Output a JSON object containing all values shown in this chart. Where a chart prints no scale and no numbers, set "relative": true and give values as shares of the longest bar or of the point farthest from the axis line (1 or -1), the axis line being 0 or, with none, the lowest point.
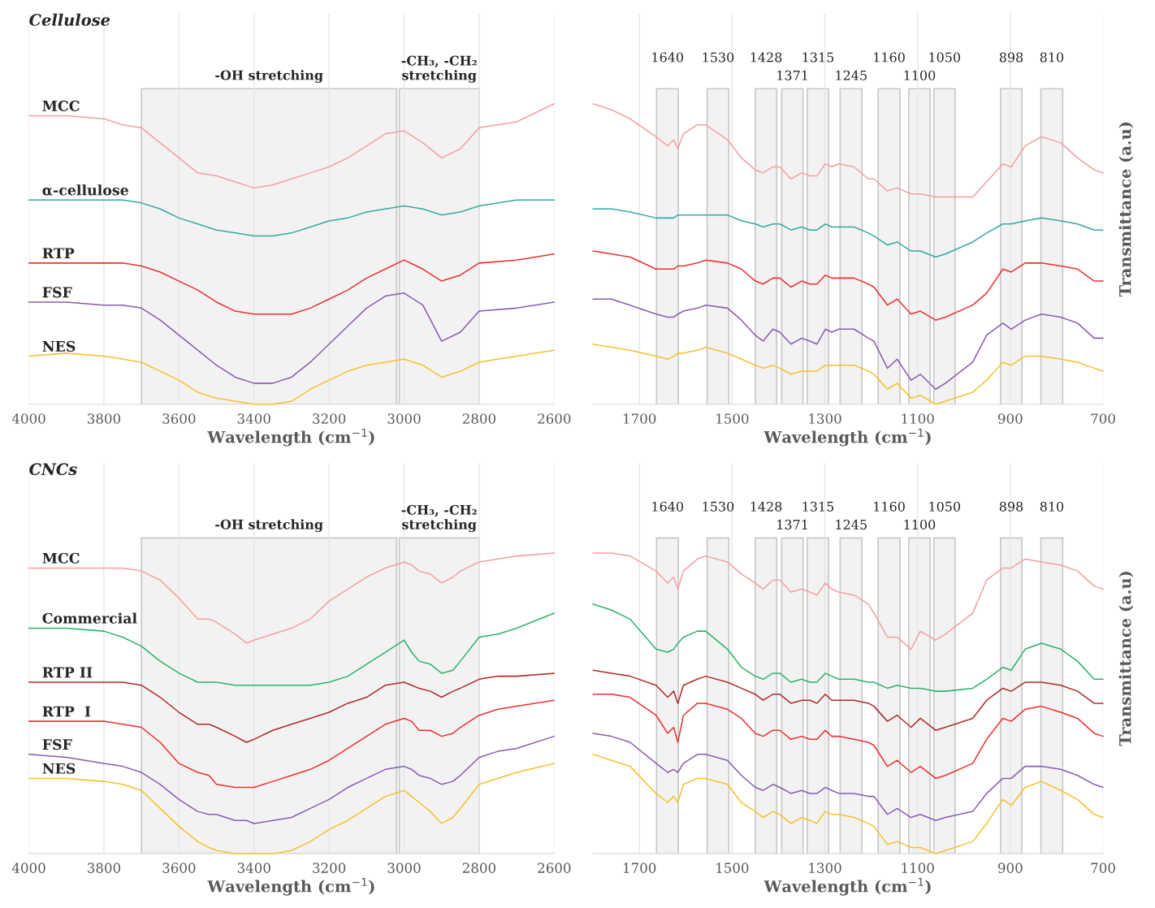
{
  "chart_data": [
    {
      "type": "line",
      "title": "Cellulose",
      "xlabel": "Wavelength (cm$^{−1}$)",
      "relative": true,
      "grid": "x",
      "xlim": [
        4000,
        2600
      ],
      "xticks": [
        4000,
        3800,
        3600,
        3400,
        3200,
        3000,
        2800,
        2600
      ],
      "bands": [
        {
          "axis": "x",
          "from": 3700,
          "to": 3020,
          "label": "-OH stretching"
        },
        {
          "axis": "x",
          "from": 3013,
          "to": 2800,
          "label": "-CH₃, -CH₂\nstretching"
        }
      ],
      "series": [
        {
          "name": "MCC",
          "color": "#f4a0a0",
          "x": [
            4000,
            3900,
            3800,
            3750,
            3700,
            3650,
            3600,
            3550,
            3500,
            3450,
            3400,
            3350,
            3300,
            3250,
            3200,
            3150,
            3100,
            3050,
            3000,
            2950,
            2900,
            2850,
            2800,
            2700,
            2600
          ],
          "values": [
            0.96,
            0.96,
            0.95,
            0.93,
            0.92,
            0.87,
            0.82,
            0.77,
            0.76,
            0.74,
            0.72,
            0.73,
            0.75,
            0.77,
            0.79,
            0.82,
            0.86,
            0.9,
            0.91,
            0.87,
            0.82,
            0.85,
            0.92,
            0.94,
            1.0
          ]
        },
        {
          "name": "α-cellulose",
          "color": "#35a8a5",
          "x": [
            4000,
            3900,
            3800,
            3750,
            3700,
            3650,
            3600,
            3550,
            3500,
            3450,
            3400,
            3350,
            3300,
            3250,
            3200,
            3150,
            3100,
            3050,
            3000,
            2950,
            2900,
            2850,
            2800,
            2700,
            2600
          ],
          "values": [
            0.68,
            0.68,
            0.68,
            0.68,
            0.67,
            0.65,
            0.62,
            0.6,
            0.58,
            0.57,
            0.56,
            0.56,
            0.57,
            0.59,
            0.61,
            0.62,
            0.64,
            0.65,
            0.66,
            0.65,
            0.63,
            0.64,
            0.66,
            0.68,
            0.68
          ]
        },
        {
          "name": "RTP",
          "color": "#ee3030",
          "x": [
            4000,
            3900,
            3800,
            3750,
            3700,
            3650,
            3600,
            3550,
            3500,
            3450,
            3400,
            3350,
            3300,
            3250,
            3200,
            3150,
            3100,
            3050,
            3000,
            2950,
            2900,
            2850,
            2800,
            2700,
            2600
          ],
          "values": [
            0.47,
            0.47,
            0.47,
            0.47,
            0.46,
            0.44,
            0.41,
            0.38,
            0.34,
            0.31,
            0.3,
            0.3,
            0.3,
            0.32,
            0.35,
            0.38,
            0.42,
            0.45,
            0.48,
            0.45,
            0.41,
            0.43,
            0.47,
            0.48,
            0.5
          ]
        },
        {
          "name": "FSF",
          "color": "#8a5cb0",
          "x": [
            4000,
            3900,
            3800,
            3750,
            3700,
            3650,
            3600,
            3550,
            3500,
            3450,
            3400,
            3350,
            3300,
            3250,
            3200,
            3150,
            3100,
            3050,
            3000,
            2950,
            2900,
            2850,
            2800,
            2700,
            2600
          ],
          "values": [
            0.34,
            0.34,
            0.33,
            0.33,
            0.32,
            0.28,
            0.23,
            0.18,
            0.13,
            0.09,
            0.07,
            0.07,
            0.09,
            0.14,
            0.2,
            0.26,
            0.32,
            0.36,
            0.37,
            0.33,
            0.21,
            0.24,
            0.31,
            0.32,
            0.34
          ]
        },
        {
          "name": "NES",
          "color": "#f5c030",
          "x": [
            4000,
            3900,
            3800,
            3750,
            3700,
            3650,
            3600,
            3550,
            3500,
            3450,
            3400,
            3350,
            3300,
            3250,
            3200,
            3150,
            3100,
            3050,
            3000,
            2950,
            2900,
            2850,
            2800,
            2700,
            2600
          ],
          "values": [
            0.16,
            0.17,
            0.16,
            0.15,
            0.14,
            0.11,
            0.08,
            0.04,
            0.02,
            0.01,
            0,
            0,
            0.01,
            0.05,
            0.08,
            0.11,
            0.13,
            0.14,
            0.15,
            0.13,
            0.09,
            0.11,
            0.14,
            0.16,
            0.18
          ]
        }
      ]
    },
    {
      "type": "line",
      "xlabel": "Wavelength (cm$^{−1}$)",
      "ylabel": "Transmittance (a.u)",
      "relative": true,
      "grid": "x",
      "xlim": [
        1800,
        700
      ],
      "xticks": [
        1700,
        1500,
        1300,
        1100,
        900,
        700
      ],
      "bands": [
        {
          "axis": "x",
          "from": 1663,
          "to": 1616,
          "label": "1640"
        },
        {
          "axis": "x",
          "from": 1554,
          "to": 1507,
          "label": "1530"
        },
        {
          "axis": "x",
          "from": 1450,
          "to": 1404,
          "label": "1428"
        },
        {
          "axis": "x",
          "from": 1393,
          "to": 1347,
          "label": "1371"
        },
        {
          "axis": "x",
          "from": 1338,
          "to": 1292,
          "label": "1315"
        },
        {
          "axis": "x",
          "from": 1267,
          "to": 1220,
          "label": "1245"
        },
        {
          "axis": "x",
          "from": 1185,
          "to": 1138,
          "label": "1160"
        },
        {
          "axis": "x",
          "from": 1119,
          "to": 1073,
          "label": "1100"
        },
        {
          "axis": "x",
          "from": 1065,
          "to": 1019,
          "label": "1050"
        },
        {
          "axis": "x",
          "from": 921,
          "to": 875,
          "label": "898"
        },
        {
          "axis": "x",
          "from": 834,
          "to": 787,
          "label": "810"
        }
      ],
      "series": [
        {
          "color": "#f4a0a0",
          "x": [
            1800,
            1760,
            1720,
            1664,
            1639,
            1626,
            1617,
            1605,
            1575,
            1557,
            1510,
            1480,
            1450,
            1433,
            1412,
            1397,
            1373,
            1350,
            1332,
            1317,
            1299,
            1285,
            1270,
            1237,
            1206,
            1194,
            1165,
            1144,
            1114,
            1094,
            1061,
            1040,
            981,
            951,
            916,
            898,
            868,
            833,
            791,
            755,
            719,
            700
          ],
          "values": [
            1.0,
            0.98,
            0.95,
            0.89,
            0.86,
            0.88,
            0.85,
            0.9,
            0.93,
            0.93,
            0.88,
            0.82,
            0.78,
            0.77,
            0.79,
            0.79,
            0.75,
            0.77,
            0.76,
            0.76,
            0.8,
            0.79,
            0.8,
            0.79,
            0.75,
            0.75,
            0.71,
            0.72,
            0.7,
            0.7,
            0.69,
            0.69,
            0.69,
            0.74,
            0.8,
            0.79,
            0.86,
            0.89,
            0.87,
            0.82,
            0.78,
            0.77
          ]
        },
        {
          "color": "#35a8a5",
          "x": [
            1800,
            1760,
            1720,
            1664,
            1639,
            1626,
            1617,
            1605,
            1575,
            1557,
            1510,
            1480,
            1450,
            1433,
            1412,
            1397,
            1373,
            1350,
            1332,
            1317,
            1299,
            1285,
            1270,
            1237,
            1206,
            1194,
            1165,
            1144,
            1114,
            1094,
            1061,
            1040,
            981,
            951,
            916,
            898,
            868,
            833,
            791,
            755,
            719,
            700
          ],
          "values": [
            0.65,
            0.65,
            0.64,
            0.62,
            0.62,
            0.62,
            0.63,
            0.63,
            0.63,
            0.63,
            0.63,
            0.61,
            0.6,
            0.59,
            0.6,
            0.6,
            0.58,
            0.59,
            0.58,
            0.58,
            0.6,
            0.59,
            0.59,
            0.59,
            0.57,
            0.56,
            0.53,
            0.54,
            0.51,
            0.51,
            0.49,
            0.5,
            0.54,
            0.57,
            0.6,
            0.6,
            0.61,
            0.62,
            0.61,
            0.6,
            0.58,
            0.58
          ]
        },
        {
          "color": "#ee3030",
          "x": [
            1800,
            1760,
            1720,
            1664,
            1639,
            1626,
            1617,
            1605,
            1575,
            1557,
            1510,
            1480,
            1450,
            1433,
            1412,
            1397,
            1373,
            1350,
            1332,
            1317,
            1299,
            1285,
            1270,
            1237,
            1206,
            1194,
            1165,
            1144,
            1114,
            1094,
            1061,
            1040,
            981,
            951,
            916,
            898,
            868,
            833,
            791,
            755,
            719,
            700
          ],
          "values": [
            0.51,
            0.5,
            0.49,
            0.45,
            0.45,
            0.45,
            0.46,
            0.46,
            0.47,
            0.48,
            0.47,
            0.45,
            0.41,
            0.4,
            0.42,
            0.42,
            0.39,
            0.41,
            0.4,
            0.4,
            0.43,
            0.42,
            0.42,
            0.42,
            0.4,
            0.39,
            0.33,
            0.35,
            0.3,
            0.31,
            0.28,
            0.29,
            0.33,
            0.37,
            0.45,
            0.44,
            0.47,
            0.47,
            0.46,
            0.45,
            0.41,
            0.41
          ]
        },
        {
          "color": "#8a5cb0",
          "x": [
            1800,
            1760,
            1720,
            1664,
            1639,
            1626,
            1617,
            1605,
            1575,
            1557,
            1510,
            1480,
            1450,
            1433,
            1412,
            1397,
            1373,
            1350,
            1332,
            1317,
            1299,
            1285,
            1270,
            1237,
            1206,
            1194,
            1165,
            1144,
            1114,
            1094,
            1061,
            1040,
            981,
            951,
            916,
            898,
            868,
            833,
            791,
            755,
            719,
            700
          ],
          "values": [
            0.35,
            0.35,
            0.33,
            0.3,
            0.29,
            0.29,
            0.3,
            0.31,
            0.32,
            0.33,
            0.32,
            0.28,
            0.23,
            0.21,
            0.25,
            0.24,
            0.2,
            0.22,
            0.21,
            0.2,
            0.25,
            0.24,
            0.25,
            0.25,
            0.22,
            0.21,
            0.12,
            0.15,
            0.08,
            0.1,
            0.05,
            0.07,
            0.14,
            0.23,
            0.27,
            0.25,
            0.28,
            0.3,
            0.29,
            0.27,
            0.22,
            0.22
          ]
        },
        {
          "color": "#f5c030",
          "x": [
            1800,
            1760,
            1720,
            1664,
            1639,
            1626,
            1617,
            1605,
            1575,
            1557,
            1510,
            1480,
            1450,
            1433,
            1412,
            1397,
            1373,
            1350,
            1332,
            1317,
            1299,
            1285,
            1270,
            1237,
            1206,
            1194,
            1165,
            1144,
            1114,
            1094,
            1061,
            1040,
            981,
            951,
            916,
            898,
            868,
            833,
            791,
            755,
            719,
            700
          ],
          "values": [
            0.2,
            0.19,
            0.18,
            0.16,
            0.15,
            0.16,
            0.17,
            0.17,
            0.18,
            0.19,
            0.17,
            0.15,
            0.13,
            0.12,
            0.13,
            0.12,
            0.1,
            0.11,
            0.11,
            0.11,
            0.13,
            0.13,
            0.13,
            0.13,
            0.11,
            0.1,
            0.05,
            0.07,
            0.02,
            0.03,
            0,
            0.01,
            0.04,
            0.08,
            0.14,
            0.13,
            0.16,
            0.16,
            0.15,
            0.14,
            0.12,
            0.11
          ]
        }
      ]
    },
    {
      "type": "line",
      "title": "CNCs",
      "xlabel": "Wavelength (cm$^{−1}$)",
      "relative": true,
      "grid": "x",
      "xlim": [
        4000,
        2600
      ],
      "xticks": [
        4000,
        3800,
        3600,
        3400,
        3200,
        3000,
        2800,
        2600
      ],
      "bands": [
        {
          "axis": "x",
          "from": 3700,
          "to": 3020,
          "label": "-OH stretching"
        },
        {
          "axis": "x",
          "from": 3013,
          "to": 2800,
          "label": "-CH₃, -CH₂\nstretching"
        }
      ],
      "series": [
        {
          "name": "MCC",
          "color": "#f4a0a0",
          "x": [
            4000,
            3900,
            3800,
            3750,
            3700,
            3650,
            3600,
            3550,
            3520,
            3500,
            3450,
            3420,
            3400,
            3350,
            3300,
            3250,
            3200,
            3150,
            3100,
            3050,
            3000,
            2980,
            2960,
            2930,
            2900,
            2870,
            2850,
            2800,
            2750,
            2700,
            2600
          ],
          "values": [
            0.95,
            0.95,
            0.95,
            0.95,
            0.94,
            0.91,
            0.85,
            0.78,
            0.78,
            0.77,
            0.73,
            0.7,
            0.71,
            0.73,
            0.75,
            0.78,
            0.84,
            0.88,
            0.92,
            0.95,
            0.97,
            0.96,
            0.94,
            0.93,
            0.9,
            0.92,
            0.94,
            0.97,
            0.98,
            0.99,
            1.0
          ]
        },
        {
          "name": "Commercial",
          "color": "#2eb36a",
          "x": [
            4000,
            3900,
            3800,
            3750,
            3700,
            3650,
            3600,
            3550,
            3520,
            3500,
            3450,
            3420,
            3400,
            3350,
            3300,
            3250,
            3200,
            3150,
            3100,
            3050,
            3000,
            2980,
            2960,
            2930,
            2900,
            2870,
            2850,
            2800,
            2750,
            2700,
            2600
          ],
          "values": [
            0.75,
            0.75,
            0.74,
            0.72,
            0.69,
            0.64,
            0.6,
            0.57,
            0.57,
            0.57,
            0.56,
            0.56,
            0.56,
            0.56,
            0.56,
            0.56,
            0.57,
            0.59,
            0.63,
            0.67,
            0.71,
            0.67,
            0.64,
            0.63,
            0.6,
            0.61,
            0.64,
            0.72,
            0.73,
            0.75,
            0.8
          ]
        },
        {
          "name": "RTP II",
          "color": "#b22a2a",
          "x": [
            4000,
            3900,
            3800,
            3750,
            3700,
            3650,
            3600,
            3550,
            3520,
            3500,
            3450,
            3420,
            3400,
            3350,
            3300,
            3250,
            3200,
            3150,
            3100,
            3050,
            3000,
            2980,
            2960,
            2930,
            2900,
            2870,
            2850,
            2800,
            2750,
            2700,
            2600
          ],
          "values": [
            0.57,
            0.57,
            0.57,
            0.57,
            0.56,
            0.52,
            0.47,
            0.43,
            0.43,
            0.42,
            0.39,
            0.37,
            0.38,
            0.41,
            0.43,
            0.45,
            0.47,
            0.5,
            0.52,
            0.56,
            0.57,
            0.56,
            0.55,
            0.54,
            0.52,
            0.54,
            0.55,
            0.58,
            0.59,
            0.59,
            0.6
          ]
        },
        {
          "name": "RTP  I",
          "color": "#ee3030",
          "x": [
            4000,
            3900,
            3800,
            3750,
            3700,
            3650,
            3600,
            3550,
            3520,
            3500,
            3450,
            3420,
            3400,
            3350,
            3300,
            3250,
            3200,
            3150,
            3100,
            3050,
            3000,
            2980,
            2960,
            2930,
            2900,
            2870,
            2850,
            2800,
            2750,
            2700,
            2600
          ],
          "values": [
            0.44,
            0.44,
            0.44,
            0.43,
            0.42,
            0.37,
            0.3,
            0.27,
            0.26,
            0.23,
            0.22,
            0.22,
            0.22,
            0.24,
            0.26,
            0.28,
            0.31,
            0.35,
            0.39,
            0.43,
            0.45,
            0.44,
            0.41,
            0.41,
            0.39,
            0.4,
            0.42,
            0.46,
            0.48,
            0.49,
            0.51
          ]
        },
        {
          "name": "FSF",
          "color": "#8a5cb0",
          "x": [
            4000,
            3900,
            3800,
            3750,
            3700,
            3650,
            3600,
            3550,
            3520,
            3500,
            3450,
            3420,
            3400,
            3350,
            3300,
            3250,
            3200,
            3150,
            3100,
            3050,
            3000,
            2980,
            2960,
            2930,
            2900,
            2870,
            2850,
            2800,
            2750,
            2700,
            2600
          ],
          "values": [
            0.33,
            0.32,
            0.3,
            0.29,
            0.27,
            0.23,
            0.18,
            0.14,
            0.13,
            0.13,
            0.11,
            0.11,
            0.1,
            0.11,
            0.12,
            0.15,
            0.18,
            0.22,
            0.25,
            0.28,
            0.29,
            0.28,
            0.26,
            0.25,
            0.23,
            0.24,
            0.26,
            0.32,
            0.34,
            0.35,
            0.39
          ]
        },
        {
          "name": "NES",
          "color": "#f5c030",
          "x": [
            4000,
            3900,
            3800,
            3750,
            3700,
            3650,
            3600,
            3550,
            3520,
            3500,
            3450,
            3420,
            3400,
            3350,
            3300,
            3250,
            3200,
            3150,
            3100,
            3050,
            3000,
            2980,
            2960,
            2930,
            2900,
            2870,
            2850,
            2800,
            2750,
            2700,
            2600
          ],
          "values": [
            0.25,
            0.25,
            0.24,
            0.23,
            0.21,
            0.15,
            0.09,
            0.04,
            0.02,
            0.01,
            0,
            0,
            0,
            0,
            0.01,
            0.04,
            0.08,
            0.11,
            0.15,
            0.19,
            0.21,
            0.19,
            0.17,
            0.14,
            0.1,
            0.12,
            0.15,
            0.23,
            0.25,
            0.27,
            0.3
          ]
        }
      ]
    },
    {
      "type": "line",
      "xlabel": "Wavelength (cm$^{−1}$)",
      "ylabel": "Transmittance (a.u)",
      "relative": true,
      "grid": "x",
      "xlim": [
        1800,
        700
      ],
      "xticks": [
        1700,
        1500,
        1300,
        1100,
        900,
        700
      ],
      "bands": [
        {
          "axis": "x",
          "from": 1663,
          "to": 1616,
          "label": "1640"
        },
        {
          "axis": "x",
          "from": 1554,
          "to": 1507,
          "label": "1530"
        },
        {
          "axis": "x",
          "from": 1450,
          "to": 1404,
          "label": "1428"
        },
        {
          "axis": "x",
          "from": 1393,
          "to": 1347,
          "label": "1371"
        },
        {
          "axis": "x",
          "from": 1338,
          "to": 1292,
          "label": "1315"
        },
        {
          "axis": "x",
          "from": 1267,
          "to": 1220,
          "label": "1245"
        },
        {
          "axis": "x",
          "from": 1185,
          "to": 1138,
          "label": "1160"
        },
        {
          "axis": "x",
          "from": 1119,
          "to": 1073,
          "label": "1100"
        },
        {
          "axis": "x",
          "from": 1065,
          "to": 1019,
          "label": "1050"
        },
        {
          "axis": "x",
          "from": 921,
          "to": 875,
          "label": "898"
        },
        {
          "axis": "x",
          "from": 834,
          "to": 787,
          "label": "810"
        }
      ],
      "series": [
        {
          "color": "#f4a0a0",
          "x": [
            1800,
            1760,
            1720,
            1664,
            1639,
            1626,
            1617,
            1605,
            1575,
            1557,
            1510,
            1480,
            1450,
            1433,
            1412,
            1397,
            1373,
            1350,
            1332,
            1317,
            1299,
            1285,
            1270,
            1237,
            1206,
            1194,
            1165,
            1144,
            1114,
            1094,
            1061,
            1040,
            981,
            951,
            916,
            898,
            868,
            833,
            791,
            755,
            719,
            700
          ],
          "values": [
            1.0,
            1.0,
            0.99,
            0.94,
            0.9,
            0.92,
            0.88,
            0.94,
            0.98,
            0.99,
            0.97,
            0.93,
            0.9,
            0.88,
            0.91,
            0.91,
            0.87,
            0.88,
            0.87,
            0.86,
            0.9,
            0.88,
            0.87,
            0.86,
            0.83,
            0.8,
            0.72,
            0.72,
            0.68,
            0.74,
            0.71,
            0.73,
            0.8,
            0.91,
            0.95,
            0.95,
            0.98,
            0.97,
            0.96,
            0.94,
            0.89,
            0.88
          ]
        },
        {
          "color": "#2eb36a",
          "x": [
            1800,
            1760,
            1720,
            1664,
            1639,
            1626,
            1617,
            1605,
            1575,
            1557,
            1510,
            1480,
            1450,
            1433,
            1412,
            1397,
            1373,
            1350,
            1332,
            1317,
            1299,
            1285,
            1270,
            1237,
            1206,
            1194,
            1165,
            1144,
            1114,
            1094,
            1061,
            1040,
            981,
            951,
            916,
            898,
            868,
            833,
            791,
            755,
            719,
            700
          ],
          "values": [
            0.83,
            0.81,
            0.78,
            0.68,
            0.67,
            0.68,
            0.7,
            0.72,
            0.74,
            0.74,
            0.68,
            0.62,
            0.59,
            0.58,
            0.6,
            0.6,
            0.57,
            0.58,
            0.57,
            0.57,
            0.6,
            0.59,
            0.58,
            0.58,
            0.57,
            0.57,
            0.55,
            0.56,
            0.55,
            0.55,
            0.54,
            0.54,
            0.55,
            0.58,
            0.62,
            0.61,
            0.68,
            0.7,
            0.68,
            0.64,
            0.58,
            0.58
          ]
        },
        {
          "color": "#b22a2a",
          "x": [
            1800,
            1760,
            1720,
            1664,
            1639,
            1626,
            1617,
            1605,
            1575,
            1557,
            1510,
            1480,
            1450,
            1433,
            1412,
            1397,
            1373,
            1350,
            1332,
            1317,
            1299,
            1285,
            1270,
            1237,
            1206,
            1194,
            1165,
            1144,
            1114,
            1094,
            1061,
            1040,
            981,
            951,
            916,
            898,
            868,
            833,
            791,
            755,
            719,
            700
          ],
          "values": [
            0.61,
            0.6,
            0.59,
            0.56,
            0.52,
            0.54,
            0.5,
            0.56,
            0.58,
            0.59,
            0.57,
            0.55,
            0.53,
            0.51,
            0.53,
            0.53,
            0.5,
            0.51,
            0.51,
            0.5,
            0.53,
            0.51,
            0.51,
            0.51,
            0.5,
            0.49,
            0.44,
            0.46,
            0.42,
            0.45,
            0.41,
            0.42,
            0.45,
            0.51,
            0.55,
            0.54,
            0.57,
            0.57,
            0.56,
            0.54,
            0.5,
            0.5
          ]
        },
        {
          "color": "#ee3030",
          "x": [
            1800,
            1760,
            1720,
            1664,
            1639,
            1626,
            1617,
            1605,
            1575,
            1557,
            1510,
            1480,
            1450,
            1433,
            1412,
            1397,
            1373,
            1350,
            1332,
            1317,
            1299,
            1285,
            1270,
            1237,
            1206,
            1194,
            1165,
            1144,
            1114,
            1094,
            1061,
            1040,
            981,
            951,
            916,
            898,
            868,
            833,
            791,
            755,
            719,
            700
          ],
          "values": [
            0.53,
            0.53,
            0.52,
            0.46,
            0.4,
            0.42,
            0.37,
            0.46,
            0.5,
            0.5,
            0.48,
            0.45,
            0.4,
            0.39,
            0.41,
            0.41,
            0.38,
            0.39,
            0.38,
            0.38,
            0.41,
            0.39,
            0.39,
            0.38,
            0.37,
            0.36,
            0.29,
            0.31,
            0.27,
            0.29,
            0.25,
            0.26,
            0.3,
            0.38,
            0.45,
            0.44,
            0.48,
            0.49,
            0.47,
            0.45,
            0.4,
            0.39
          ]
        },
        {
          "color": "#8a5cb0",
          "x": [
            1800,
            1760,
            1720,
            1664,
            1639,
            1626,
            1617,
            1605,
            1575,
            1557,
            1510,
            1480,
            1450,
            1433,
            1412,
            1397,
            1373,
            1350,
            1332,
            1317,
            1299,
            1285,
            1270,
            1237,
            1206,
            1194,
            1165,
            1144,
            1114,
            1094,
            1061,
            1040,
            981,
            951,
            916,
            898,
            868,
            833,
            791,
            755,
            719,
            700
          ],
          "values": [
            0.4,
            0.39,
            0.37,
            0.3,
            0.27,
            0.28,
            0.27,
            0.3,
            0.33,
            0.33,
            0.31,
            0.26,
            0.22,
            0.21,
            0.23,
            0.22,
            0.2,
            0.21,
            0.2,
            0.2,
            0.22,
            0.21,
            0.2,
            0.2,
            0.19,
            0.19,
            0.13,
            0.15,
            0.12,
            0.13,
            0.11,
            0.12,
            0.14,
            0.2,
            0.25,
            0.25,
            0.29,
            0.29,
            0.28,
            0.26,
            0.23,
            0.22
          ]
        },
        {
          "color": "#f5c030",
          "x": [
            1800,
            1760,
            1720,
            1664,
            1639,
            1626,
            1617,
            1605,
            1575,
            1557,
            1510,
            1480,
            1450,
            1433,
            1412,
            1397,
            1373,
            1350,
            1332,
            1317,
            1299,
            1285,
            1270,
            1237,
            1206,
            1194,
            1165,
            1144,
            1114,
            1094,
            1061,
            1040,
            981,
            951,
            916,
            898,
            868,
            833,
            791,
            755,
            719,
            700
          ],
          "values": [
            0.33,
            0.31,
            0.29,
            0.2,
            0.17,
            0.19,
            0.17,
            0.23,
            0.25,
            0.25,
            0.23,
            0.17,
            0.14,
            0.12,
            0.14,
            0.13,
            0.1,
            0.12,
            0.11,
            0.1,
            0.14,
            0.13,
            0.13,
            0.12,
            0.1,
            0.09,
            0.03,
            0.04,
            0.02,
            0.02,
            0,
            0.01,
            0.04,
            0.1,
            0.18,
            0.16,
            0.22,
            0.24,
            0.21,
            0.18,
            0.13,
            0.12
          ]
        }
      ]
    }
  ]
}
